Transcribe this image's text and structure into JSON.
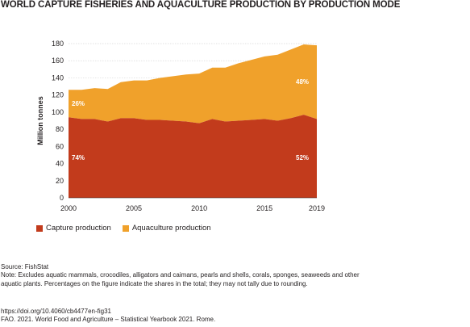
{
  "title": "WORLD CAPTURE FISHERIES AND AQUACULTURE PRODUCTION BY PRODUCTION MODE",
  "legend": {
    "capture_label": "Capture production",
    "aquaculture_label": "Aquaculture production"
  },
  "notes": {
    "source": "Source: FishStat",
    "note": "Note: Excludes aquatic mammals, crocodiles, alligators and caimans, pearls and shells, corals, sponges, seaweeds and other aquatic plants. Percentages on the figure indicate the shares in the total; they may not tally due to rounding."
  },
  "footer": {
    "doi": "https://doi.org/10.4060/cb4477en-fig31",
    "citation": "FAO. 2021. World Food and Agriculture – Statistical Yearbook 2021. Rome."
  },
  "colors": {
    "capture": "#c23b1c",
    "aquaculture": "#f0a12b",
    "grid": "#d9d9d9"
  },
  "chart_data": {
    "type": "area",
    "stacked": true,
    "ylabel": "Million tonnes",
    "ylim": [
      0,
      180
    ],
    "yticks": [
      0,
      20,
      40,
      60,
      80,
      100,
      120,
      140,
      160,
      180
    ],
    "xticks": [
      2000,
      2005,
      2010,
      2015,
      2019
    ],
    "grid": true,
    "legend_position": "bottom-left",
    "x": [
      2000,
      2001,
      2002,
      2003,
      2004,
      2005,
      2006,
      2007,
      2008,
      2009,
      2010,
      2011,
      2012,
      2013,
      2014,
      2015,
      2016,
      2017,
      2018,
      2019
    ],
    "series": [
      {
        "name": "Capture production",
        "values": [
          94,
          92,
          92,
          89,
          93,
          93,
          91,
          91,
          90,
          89,
          87,
          92,
          89,
          90,
          91,
          92,
          90,
          93,
          97,
          92
        ]
      },
      {
        "name": "Aquaculture production",
        "values": [
          32,
          34,
          36,
          38,
          42,
          44,
          46,
          49,
          52,
          55,
          58,
          60,
          63,
          67,
          70,
          73,
          77,
          80,
          82,
          86
        ]
      }
    ],
    "annotations": {
      "capture_start": "74%",
      "capture_end": "52%",
      "aquaculture_start": "26%",
      "aquaculture_end": "48%"
    }
  }
}
